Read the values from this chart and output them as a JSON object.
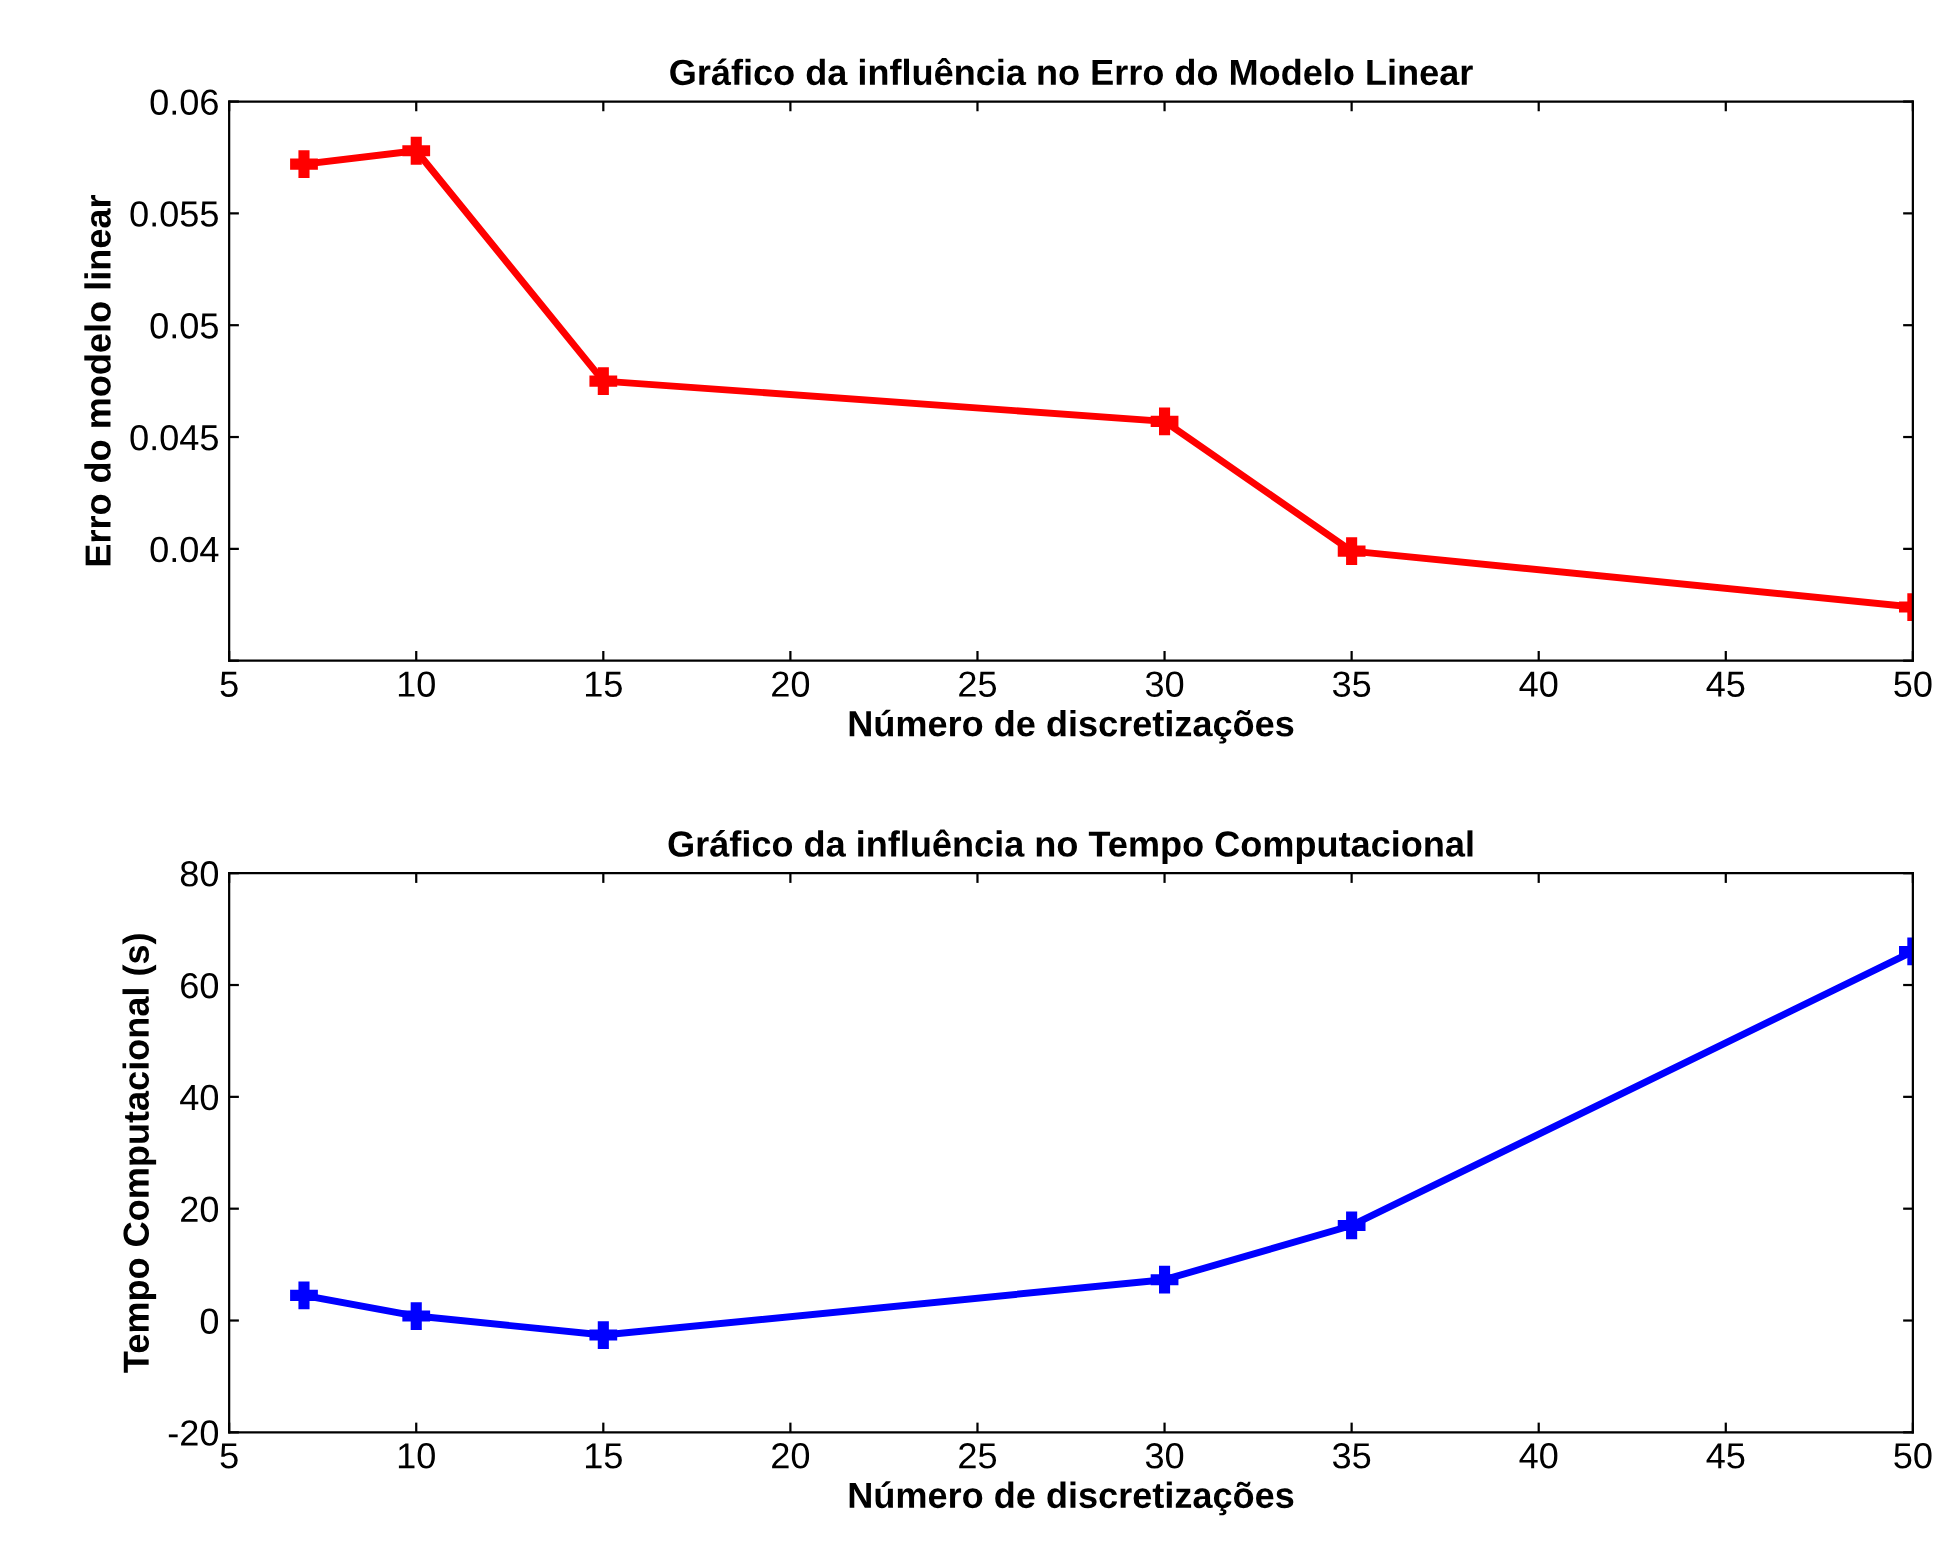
{
  "chart_data": [
    {
      "type": "line",
      "title": "Gráfico da influência no Erro do Modelo Linear",
      "xlabel": "Número de discretizações",
      "ylabel": "Erro do modelo linear",
      "x": [
        7,
        10,
        15,
        30,
        35,
        50
      ],
      "series": [
        {
          "color": "#ff0000",
          "values": [
            0.0572,
            0.0578,
            0.0475,
            0.0457,
            0.0399,
            0.0374
          ]
        }
      ],
      "xlim": [
        5,
        50
      ],
      "xticks": [
        5,
        10,
        15,
        20,
        25,
        30,
        35,
        40,
        45,
        50
      ],
      "ylim": [
        0.035,
        0.06
      ],
      "yticks": [
        {
          "value": 0.035,
          "label": null
        },
        0.04,
        0.045,
        0.05,
        0.055,
        0.06
      ],
      "marker": "cross",
      "line_style": "solid",
      "grid": false,
      "legend": false
    },
    {
      "type": "line",
      "title": "Gráfico da influência no Tempo Computacional",
      "xlabel": "Número de discretizações",
      "ylabel": "Tempo Computacional (s)",
      "x": [
        7,
        10,
        15,
        30,
        35,
        50
      ],
      "series": [
        {
          "color": "#0000ff",
          "values": [
            4.5,
            0.8,
            -2.6,
            7.3,
            17.0,
            66.0
          ]
        }
      ],
      "xlim": [
        5,
        50
      ],
      "xticks": [
        5,
        10,
        15,
        20,
        25,
        30,
        35,
        40,
        45,
        50
      ],
      "ylim": [
        -20,
        80
      ],
      "yticks": [
        -20,
        0,
        20,
        40,
        60,
        80
      ],
      "marker": "cross",
      "line_style": "solid",
      "grid": false,
      "legend": false
    }
  ]
}
